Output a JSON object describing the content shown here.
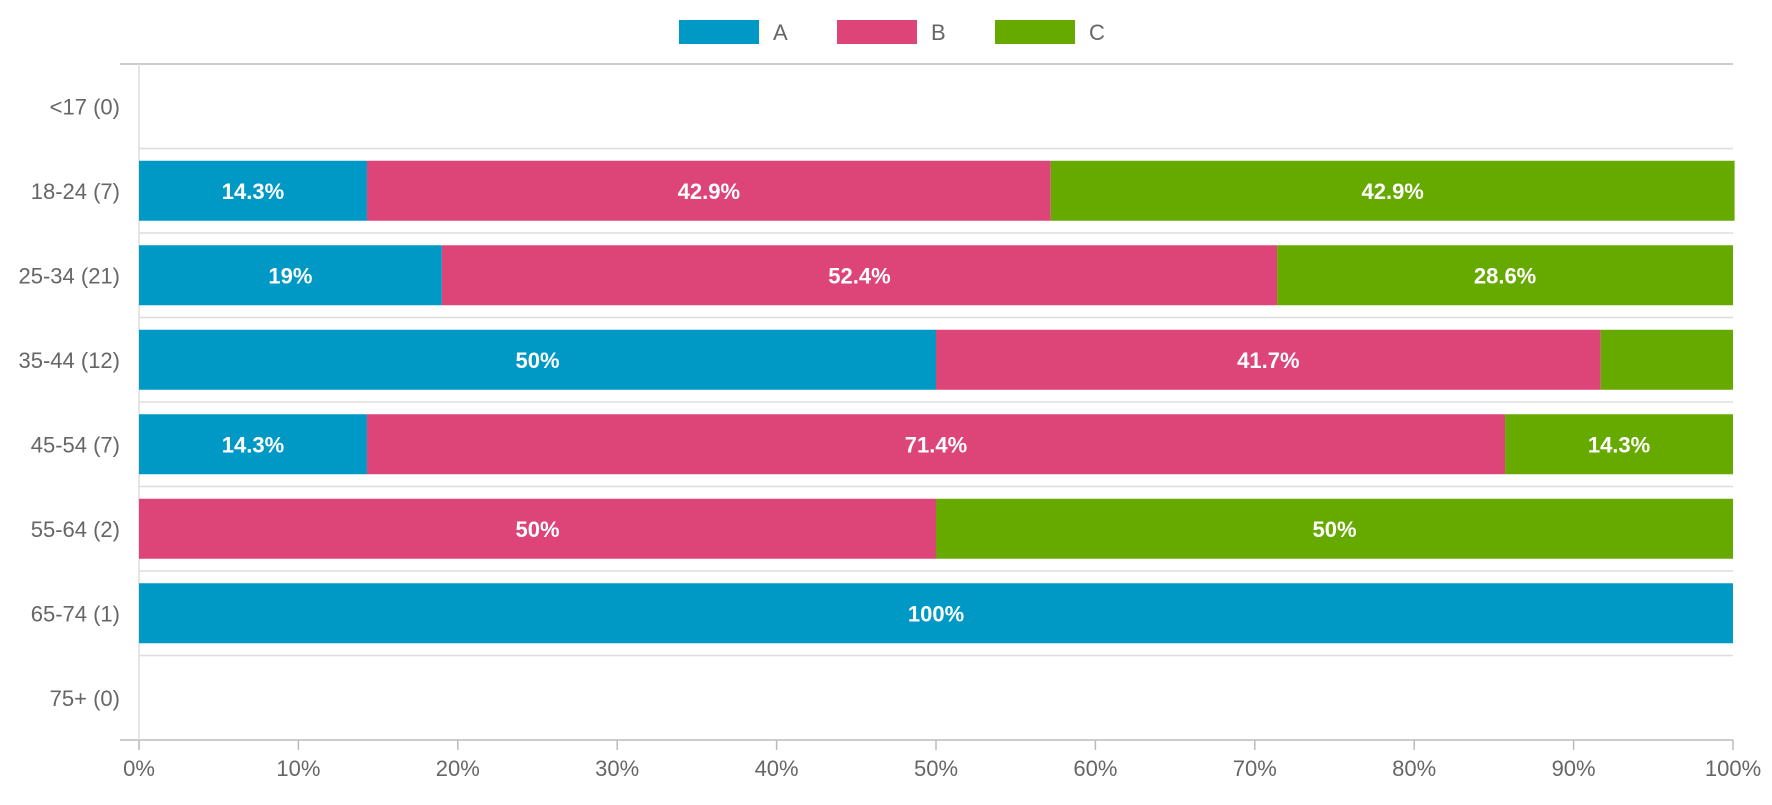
{
  "chart_data": {
    "type": "bar",
    "orientation": "horizontal",
    "stacked": "percent",
    "legend_position": "top",
    "grid": true,
    "categories": [
      "<17 (0)",
      "18-24 (7)",
      "25-34 (21)",
      "35-44 (12)",
      "45-54 (7)",
      "55-64 (2)",
      "65-74 (1)",
      "75+ (0)"
    ],
    "series": [
      {
        "name": "A",
        "color": "#0099c6",
        "values": [
          0,
          14.3,
          19,
          50,
          14.3,
          0,
          100,
          0
        ]
      },
      {
        "name": "B",
        "color": "#dd4477",
        "values": [
          0,
          42.9,
          52.4,
          41.7,
          71.4,
          50,
          0,
          0
        ]
      },
      {
        "name": "C",
        "color": "#66aa00",
        "values": [
          0,
          42.9,
          28.6,
          8.3,
          14.3,
          50,
          0,
          0
        ]
      }
    ],
    "data_labels": [
      [
        "",
        "",
        ""
      ],
      [
        "14.3%",
        "42.9%",
        "42.9%"
      ],
      [
        "19%",
        "52.4%",
        "28.6%"
      ],
      [
        "50%",
        "41.7%",
        ""
      ],
      [
        "14.3%",
        "71.4%",
        "14.3%"
      ],
      [
        "",
        "50%",
        "50%"
      ],
      [
        "100%",
        "",
        ""
      ],
      [
        "",
        "",
        ""
      ]
    ],
    "xlim": [
      0,
      100
    ],
    "xticks": [
      "0%",
      "10%",
      "20%",
      "30%",
      "40%",
      "50%",
      "60%",
      "70%",
      "80%",
      "90%",
      "100%"
    ]
  }
}
